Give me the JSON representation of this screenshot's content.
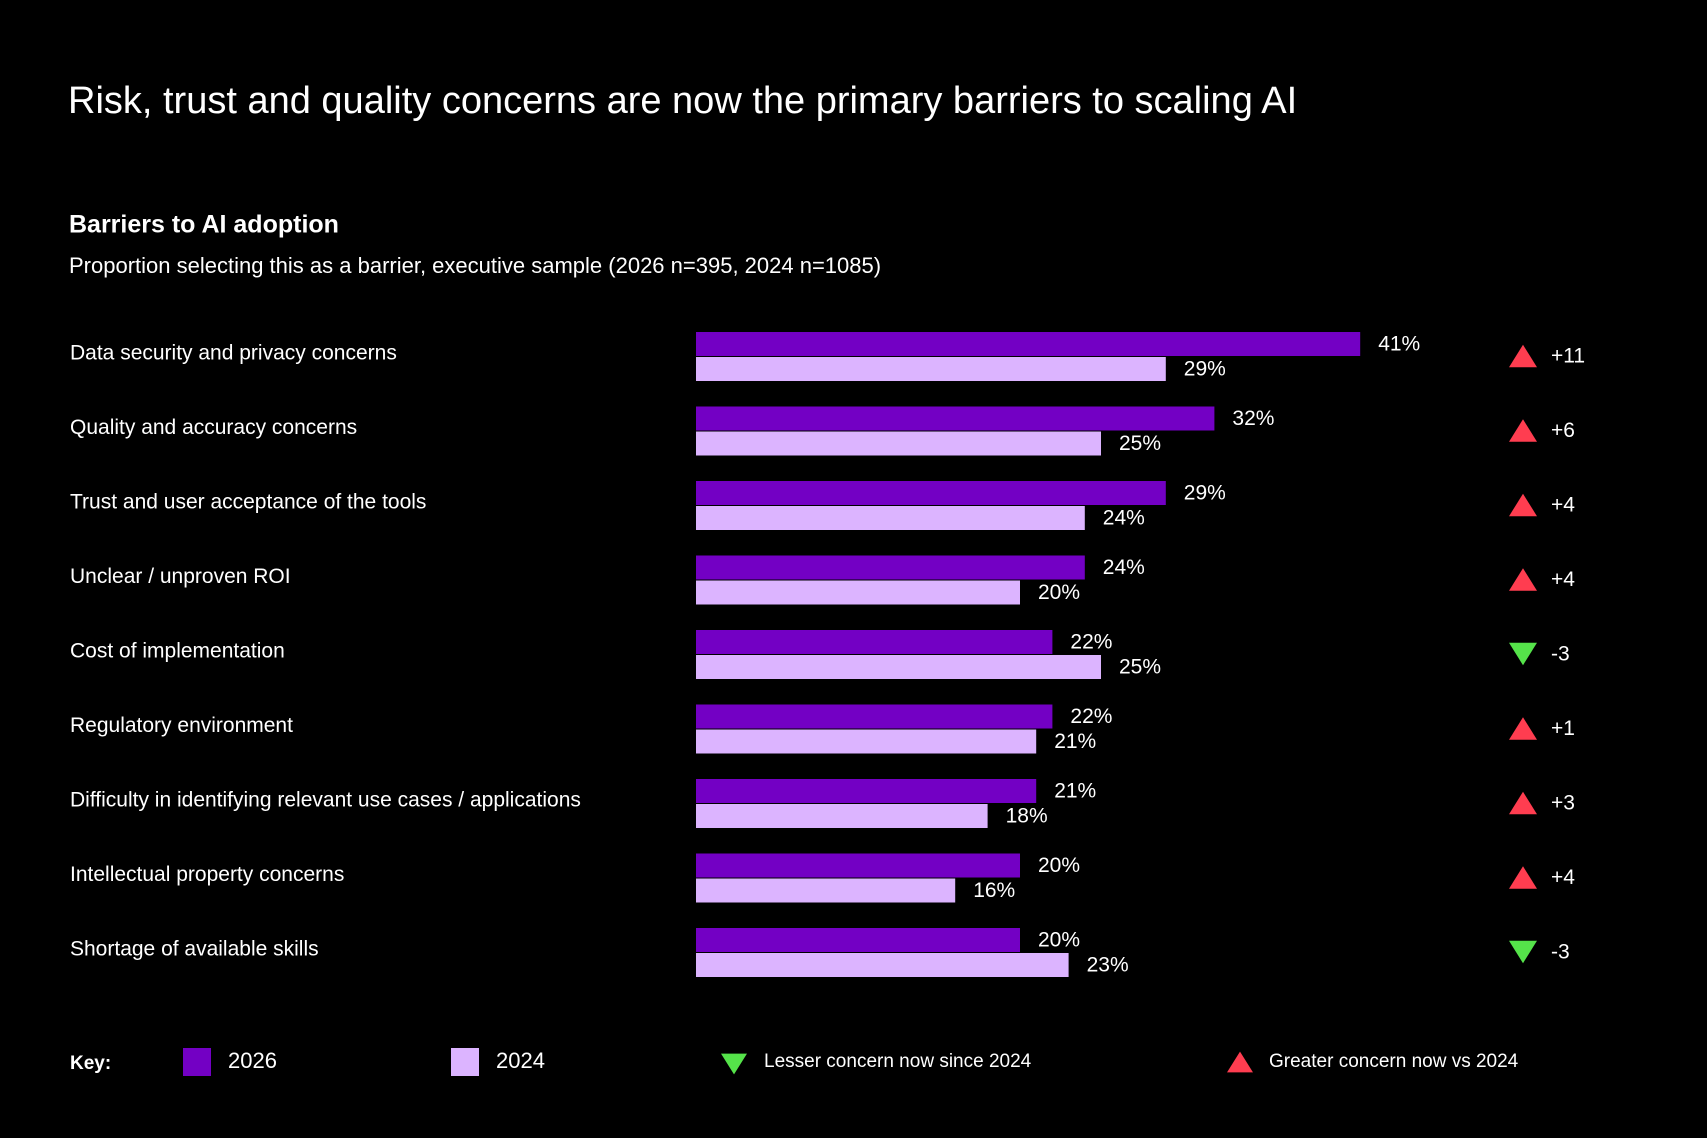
{
  "chart_data": {
    "type": "bar",
    "title": "Risk, trust and quality concerns are now the primary barriers to scaling AI",
    "subtitle": "Barriers to AI adoption",
    "description": "Proportion selecting this as a barrier, executive sample (2026 n=395, 2024 n=1085)",
    "orientation": "horizontal",
    "categories": [
      "Data security and privacy concerns",
      "Quality and accuracy concerns",
      "Trust and user acceptance of the tools",
      "Unclear / unproven ROI",
      "Cost of implementation",
      "Regulatory environment",
      "Difficulty in identifying relevant use cases / applications",
      "Intellectual property concerns",
      "Shortage of available skills"
    ],
    "series": [
      {
        "name": "2026",
        "color": "#7300c4",
        "values": [
          41,
          32,
          29,
          24,
          22,
          22,
          21,
          20,
          20
        ],
        "value_labels": [
          "41%",
          "32%",
          "29%",
          "24%",
          "22%",
          "22%",
          "21%",
          "20%",
          "20%"
        ]
      },
      {
        "name": "2024",
        "color": "#dcb4ff",
        "values": [
          29,
          25,
          24,
          20,
          25,
          21,
          18,
          16,
          23
        ],
        "value_labels": [
          "29%",
          "25%",
          "24%",
          "20%",
          "25%",
          "21%",
          "18%",
          "16%",
          "23%"
        ]
      }
    ],
    "change": {
      "values": [
        11,
        6,
        4,
        4,
        -3,
        1,
        3,
        4,
        -3
      ],
      "value_labels": [
        "+11",
        "+6",
        "+4",
        "+4",
        "-3",
        "+1",
        "+3",
        "+4",
        "-3"
      ],
      "increase_color": "#ff3d50",
      "decrease_color": "#55e34a",
      "decrease_label": "Lesser concern now since 2024",
      "increase_label": "Greater concern now vs 2024"
    },
    "legend_title": "Key:"
  }
}
